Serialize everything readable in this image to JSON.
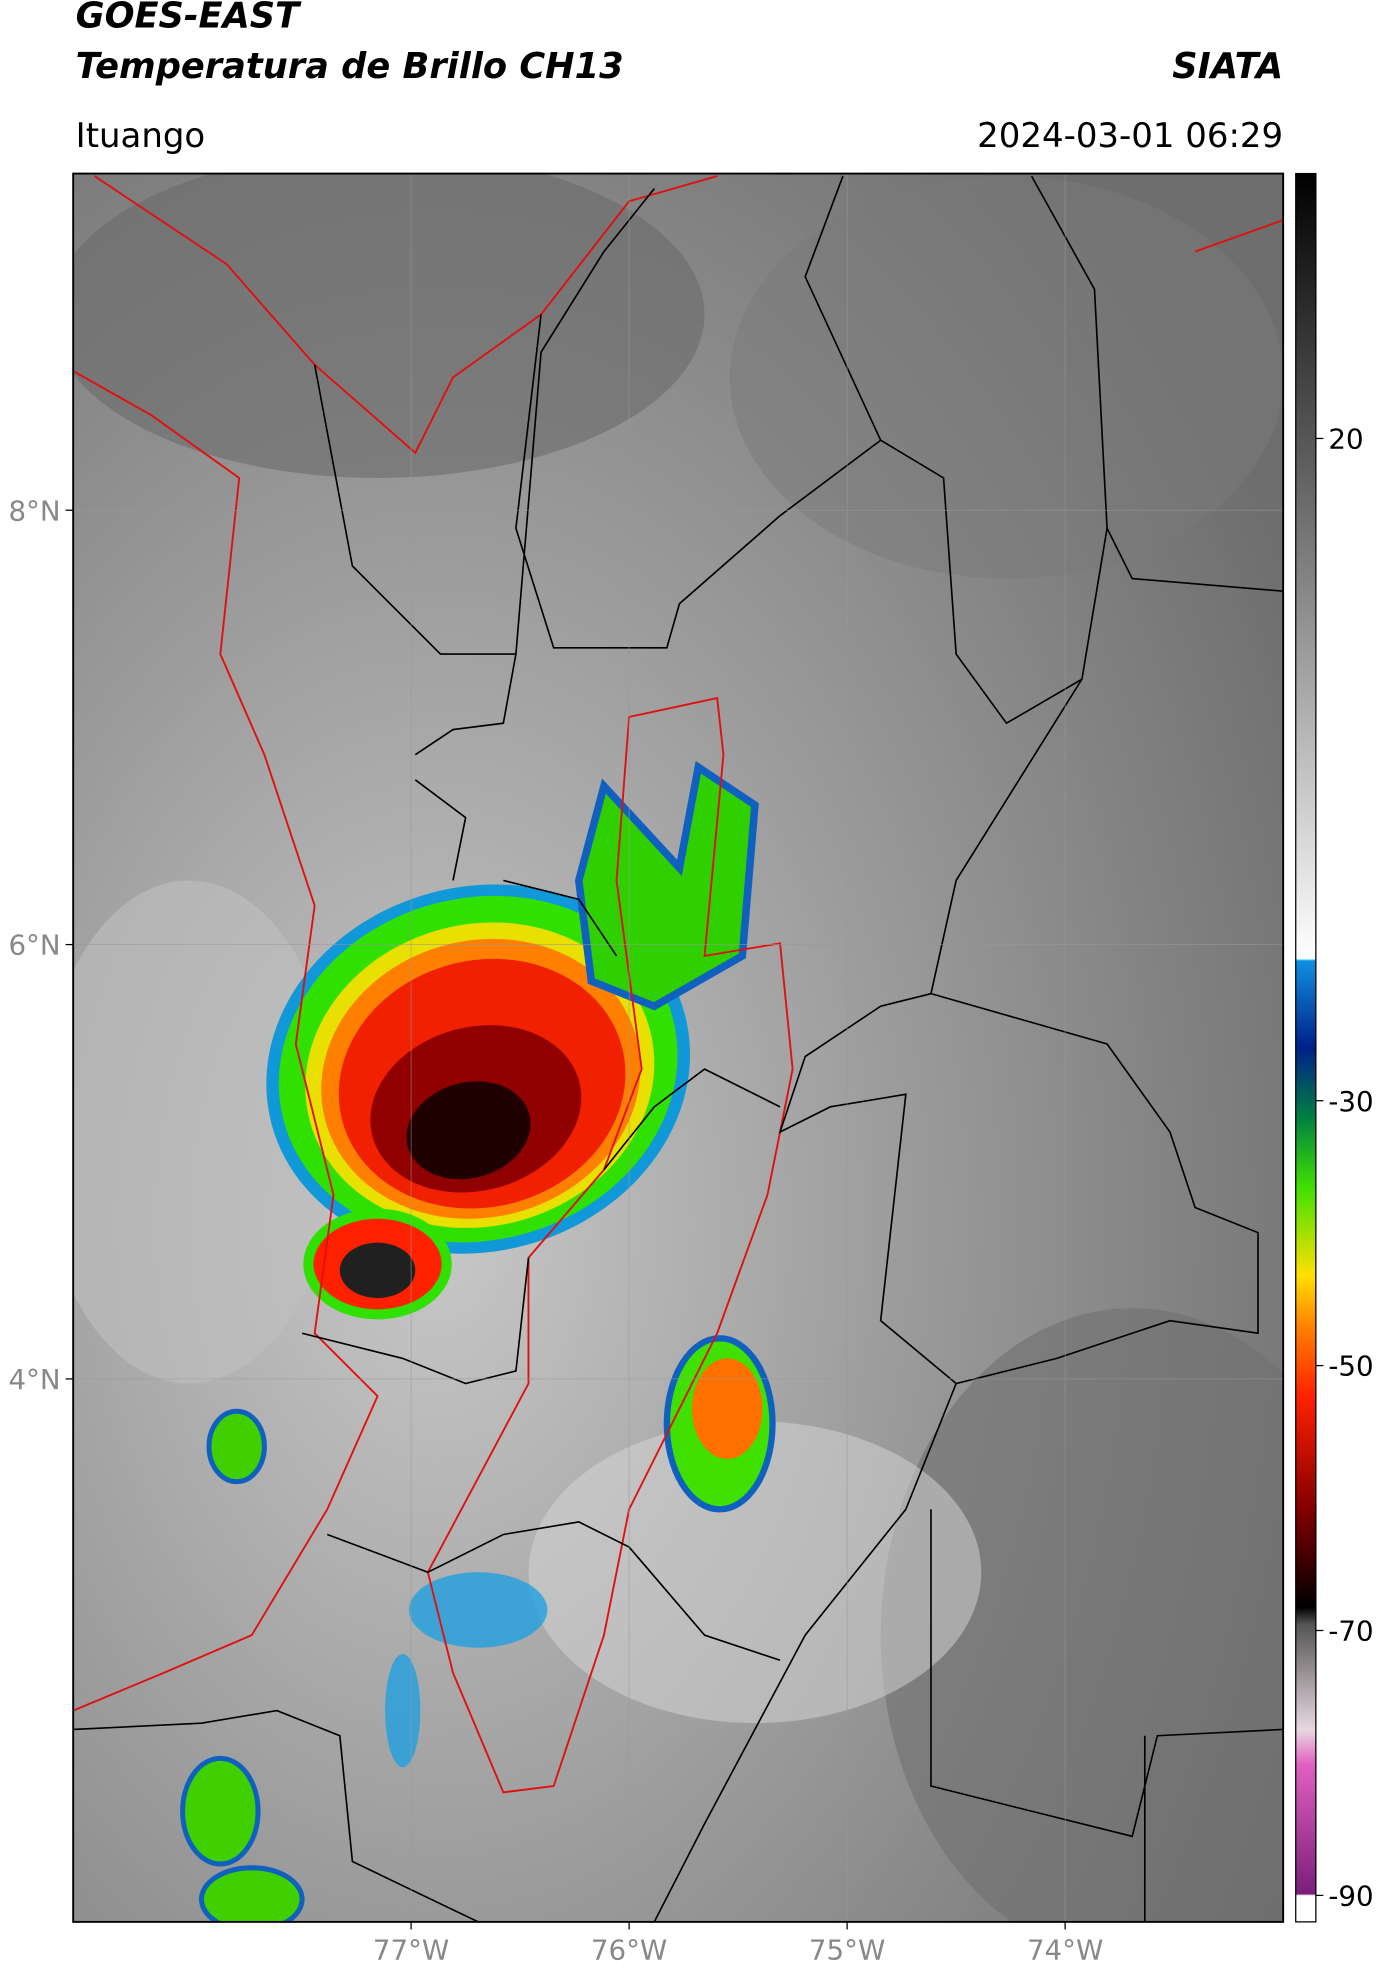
{
  "header": {
    "title": "GOES-EAST",
    "subtitle": "Temperatura de Brillo CH13",
    "source": "SIATA",
    "location": "Ituango",
    "datetime": "2024-03-01 06:29"
  },
  "map": {
    "lat_range": [
      1.5,
      9.55
    ],
    "lon_range": [
      -78.55,
      -73.0
    ],
    "lat_ticks": [
      {
        "value": 8,
        "label": "8°N"
      },
      {
        "value": 6,
        "label": "6°N"
      },
      {
        "value": 4,
        "label": "4°N"
      }
    ],
    "lon_ticks": [
      {
        "value": -77,
        "label": "77°W"
      },
      {
        "value": -76,
        "label": "76°W"
      },
      {
        "value": -75,
        "label": "75°W"
      },
      {
        "value": -74,
        "label": "74°W"
      }
    ]
  },
  "colorbar": {
    "range": [
      -92,
      40
    ],
    "ticks": [
      20,
      -30,
      -50,
      -70,
      -90
    ]
  }
}
